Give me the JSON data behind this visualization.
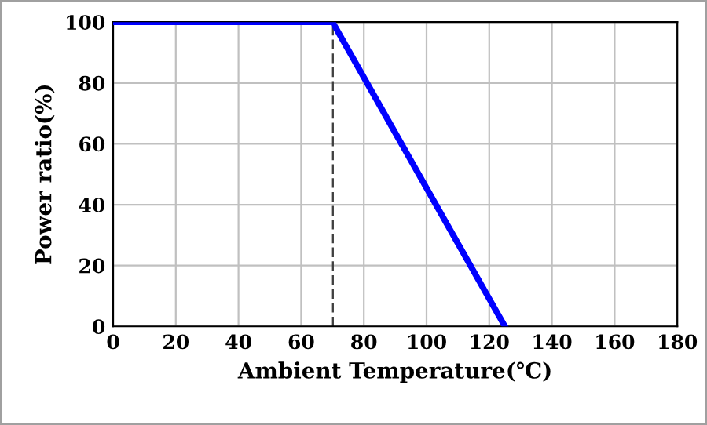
{
  "chart_data": {
    "type": "line",
    "xlabel": "Ambient Temperature(℃)",
    "ylabel": "Power ratio(%)",
    "x": [
      0,
      70,
      125
    ],
    "series": [
      {
        "color": "#0000ff",
        "values": [
          100,
          100,
          0
        ]
      }
    ],
    "xlim": [
      0,
      180
    ],
    "xticks": [
      0,
      20,
      40,
      60,
      80,
      100,
      120,
      140,
      160,
      180
    ],
    "ylim": [
      0,
      100
    ],
    "yticks": [
      0,
      20,
      40,
      60,
      80,
      100
    ],
    "grid": true,
    "marker": "none",
    "line_style": "solid",
    "ref_lines": [
      {
        "axis": "x",
        "value": 70,
        "color": "#404040",
        "line_style": "dashed"
      }
    ]
  }
}
